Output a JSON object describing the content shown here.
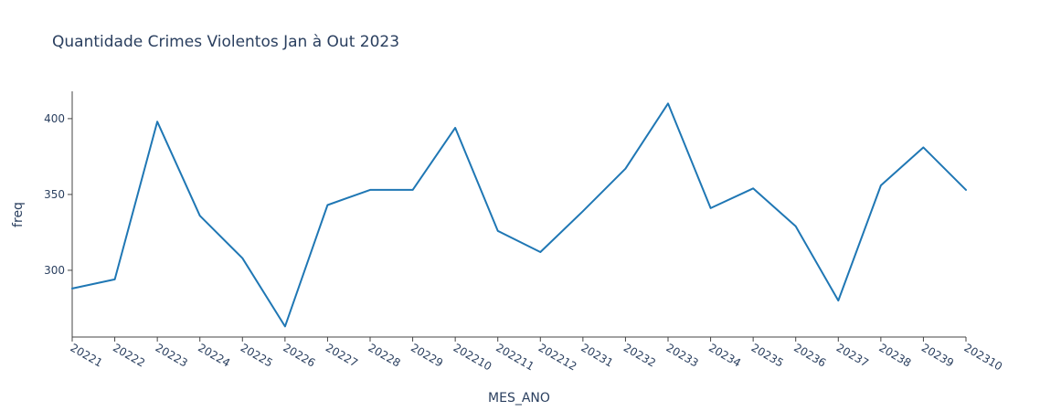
{
  "chart_data": {
    "type": "line",
    "title": "Quantidade Crimes Violentos Jan à Out 2023",
    "xlabel": "MES_ANO",
    "ylabel": "freq",
    "categories": [
      "20221",
      "20222",
      "20223",
      "20224",
      "20225",
      "20226",
      "20227",
      "20228",
      "20229",
      "202210",
      "202211",
      "202212",
      "20231",
      "20232",
      "20233",
      "20234",
      "20235",
      "20236",
      "20237",
      "20238",
      "20239",
      "202310"
    ],
    "series": [
      {
        "values": [
          288,
          294,
          398,
          336,
          308,
          263,
          343,
          353,
          353,
          394,
          326,
          312,
          339,
          367,
          410,
          341,
          354,
          329,
          280,
          356,
          381,
          353
        ]
      }
    ],
    "ylim": [
      256,
      418
    ],
    "yticks": [
      300,
      350,
      400
    ],
    "grid": false,
    "line_color": "#1f77b4"
  }
}
